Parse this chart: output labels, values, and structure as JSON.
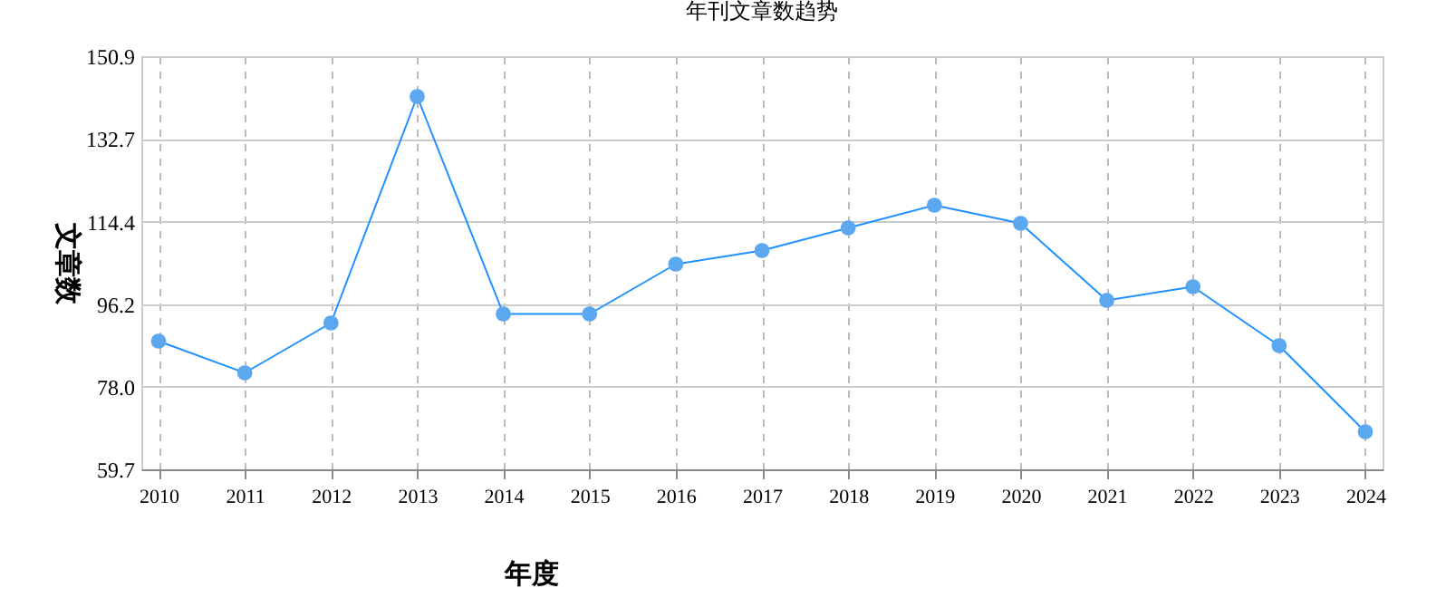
{
  "chart_data": {
    "type": "line",
    "title": "年刊文章数趋势",
    "xlabel": "年度",
    "ylabel": "文章数",
    "categories": [
      "2010",
      "2011",
      "2012",
      "2013",
      "2014",
      "2015",
      "2016",
      "2017",
      "2018",
      "2019",
      "2020",
      "2021",
      "2022",
      "2023",
      "2024"
    ],
    "series": [
      {
        "color": "#1e90ff",
        "values": [
          88,
          81,
          92,
          142,
          94,
          94,
          105,
          108,
          113,
          118,
          114,
          97,
          100,
          87,
          68
        ]
      }
    ],
    "ylim": [
      59.7,
      150.9
    ],
    "yticks": [
      59.7,
      {
        "value": 78,
        "label": "78.0"
      },
      {
        "value": 96.2,
        "label": "96.2"
      },
      114.4,
      132.7,
      150.9
    ],
    "grid": true,
    "marker": "circle",
    "line_style": "solid"
  }
}
